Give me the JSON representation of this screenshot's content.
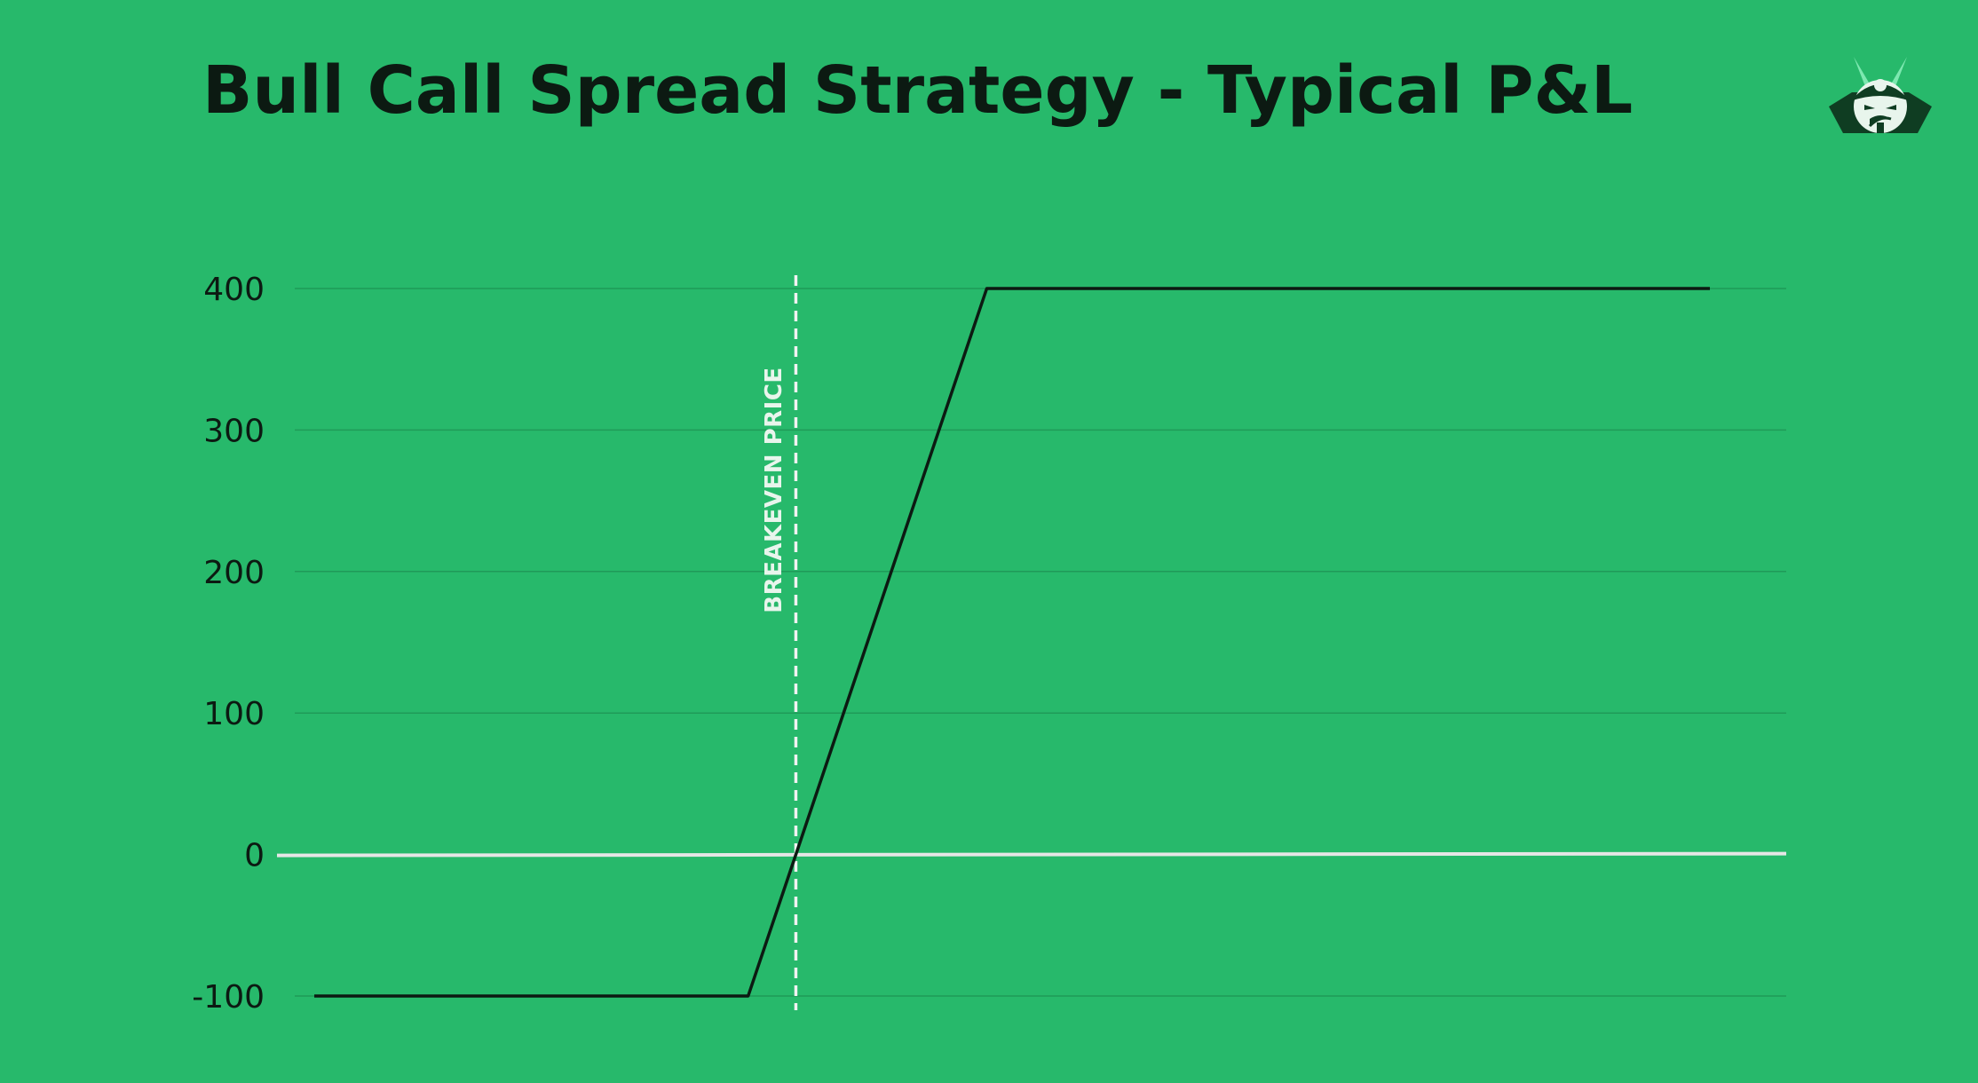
{
  "title": "Bull Call Spread Strategy - Typical P&L",
  "logo": {
    "icon": "samurai-mascot-icon",
    "colors": {
      "dark": "#0f3d22",
      "light": "#e8f5ec",
      "accent": "#7de8b0"
    }
  },
  "colors": {
    "background": "#27b96b",
    "line": "#0c1a12",
    "gridline": "#1f9a58",
    "zero_line": "#e6e6e6",
    "annotation": "#f2f2f2"
  },
  "chart_data": {
    "type": "line",
    "title": "Bull Call Spread Strategy - Typical P&L",
    "xlabel": "",
    "ylabel": "",
    "ylim": [
      -100,
      400
    ],
    "xlim": [
      0,
      100
    ],
    "yticks": [
      "400",
      "300",
      "200",
      "100",
      "0",
      "-100"
    ],
    "ytick_values": [
      400,
      300,
      200,
      100,
      0,
      -100
    ],
    "grid": true,
    "legend": "none",
    "series": [
      {
        "x": [
          0,
          30,
          46.5,
          96.5
        ],
        "y": [
          -100,
          -100,
          400,
          400
        ]
      }
    ],
    "annotations": [
      {
        "type": "vertical-dashed-line",
        "x": 33.3,
        "label": "BREAKEVEN PRICE"
      }
    ]
  }
}
